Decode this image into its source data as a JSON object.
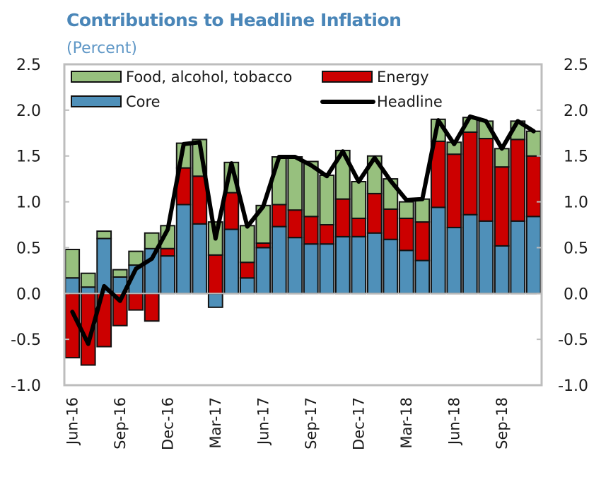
{
  "chart_data": {
    "type": "bar",
    "stacked": true,
    "title": "Contributions to Headline Inflation",
    "subtitle": "(Percent)",
    "xlabel": "",
    "ylabel": "",
    "ylim": [
      -1.0,
      2.5
    ],
    "yticks": [
      "2.5",
      "2.0",
      "1.5",
      "1.0",
      "0.5",
      "0.0",
      "-0.5",
      "-1.0"
    ],
    "ytick_values": [
      2.5,
      2.0,
      1.5,
      1.0,
      0.5,
      0.0,
      -0.5,
      -1.0
    ],
    "y2ticks": [
      "2.5",
      "2.0",
      "1.5",
      "1.0",
      "0.5",
      "0.0",
      "-0.5",
      "-1.0"
    ],
    "grid": false,
    "legend_position": "top",
    "categories": [
      "Jun-16",
      "Jul-16",
      "Aug-16",
      "Sep-16",
      "Oct-16",
      "Nov-16",
      "Dec-16",
      "Jan-17",
      "Feb-17",
      "Mar-17",
      "Apr-17",
      "May-17",
      "Jun-17",
      "Jul-17",
      "Aug-17",
      "Sep-17",
      "Oct-17",
      "Nov-17",
      "Dec-17",
      "Jan-18",
      "Feb-18",
      "Mar-18",
      "Apr-18",
      "May-18",
      "Jun-18",
      "Jul-18",
      "Aug-18",
      "Sep-18",
      "Oct-18",
      "Nov-18"
    ],
    "xtick_labels": [
      {
        "index": 0,
        "label": "Jun-16"
      },
      {
        "index": 3,
        "label": "Sep-16"
      },
      {
        "index": 6,
        "label": "Dec-16"
      },
      {
        "index": 9,
        "label": "Mar-17"
      },
      {
        "index": 12,
        "label": "Jun-17"
      },
      {
        "index": 15,
        "label": "Sep-17"
      },
      {
        "index": 18,
        "label": "Dec-17"
      },
      {
        "index": 21,
        "label": "Mar-18"
      },
      {
        "index": 24,
        "label": "Jun-18"
      },
      {
        "index": 27,
        "label": "Sep-18"
      }
    ],
    "series": [
      {
        "name": "Core",
        "kind": "bar",
        "color": "#4f90b9",
        "values": [
          0.17,
          0.07,
          0.6,
          0.18,
          0.31,
          0.49,
          0.41,
          0.97,
          0.76,
          -0.15,
          0.7,
          0.17,
          0.5,
          0.73,
          0.61,
          0.54,
          0.54,
          0.62,
          0.62,
          0.66,
          0.59,
          0.47,
          0.36,
          0.94,
          0.72,
          0.86,
          0.79,
          0.52,
          0.79,
          0.84
        ]
      },
      {
        "name": "Energy",
        "kind": "bar",
        "color": "#cc0000",
        "values": [
          -0.7,
          -0.78,
          -0.58,
          -0.35,
          -0.18,
          -0.3,
          0.08,
          0.4,
          0.52,
          0.42,
          0.4,
          0.17,
          0.05,
          0.24,
          0.3,
          0.3,
          0.21,
          0.41,
          0.2,
          0.43,
          0.33,
          0.35,
          0.42,
          0.72,
          0.8,
          0.9,
          0.9,
          0.86,
          0.89,
          0.66
        ]
      },
      {
        "name": "Food, alcohol, tobacco",
        "kind": "bar",
        "color": "#97c07e",
        "values": [
          0.31,
          0.15,
          0.08,
          0.08,
          0.15,
          0.17,
          0.25,
          0.27,
          0.4,
          0.36,
          0.33,
          0.4,
          0.41,
          0.52,
          0.58,
          0.6,
          0.54,
          0.53,
          0.4,
          0.41,
          0.33,
          0.18,
          0.25,
          0.24,
          0.13,
          0.16,
          0.19,
          0.2,
          0.2,
          0.27
        ]
      },
      {
        "name": "Headline",
        "kind": "line",
        "color": "#000000",
        "values": [
          -0.2,
          -0.55,
          0.08,
          -0.08,
          0.27,
          0.38,
          0.7,
          1.63,
          1.65,
          0.6,
          1.42,
          0.73,
          0.95,
          1.49,
          1.49,
          1.4,
          1.28,
          1.55,
          1.22,
          1.48,
          1.23,
          1.02,
          1.03,
          1.89,
          1.63,
          1.93,
          1.88,
          1.58,
          1.88,
          1.77
        ]
      }
    ],
    "legend": [
      {
        "label": "Food, alcohol, tobacco",
        "kind": "bar",
        "color": "#97c07e"
      },
      {
        "label": "Energy",
        "kind": "bar",
        "color": "#cc0000"
      },
      {
        "label": "Core",
        "kind": "bar",
        "color": "#4f90b9"
      },
      {
        "label": "Headline",
        "kind": "line",
        "color": "#000000"
      }
    ]
  }
}
